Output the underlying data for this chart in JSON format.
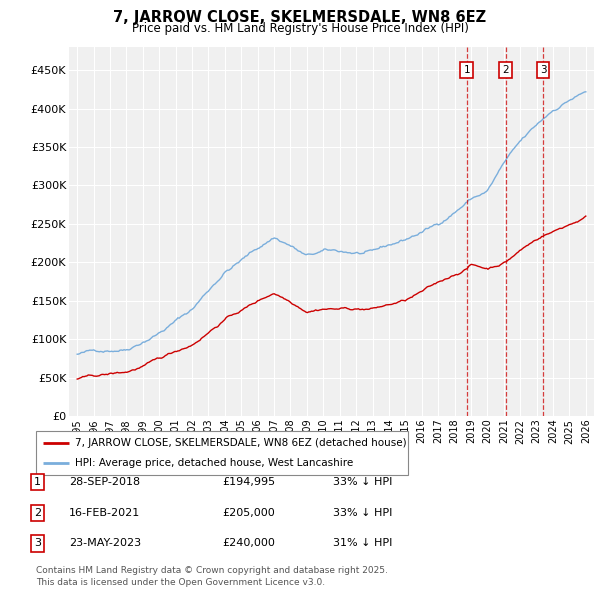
{
  "title": "7, JARROW CLOSE, SKELMERSDALE, WN8 6EZ",
  "subtitle": "Price paid vs. HM Land Registry's House Price Index (HPI)",
  "legend_label_red": "7, JARROW CLOSE, SKELMERSDALE, WN8 6EZ (detached house)",
  "legend_label_blue": "HPI: Average price, detached house, West Lancashire",
  "footnote": "Contains HM Land Registry data © Crown copyright and database right 2025.\nThis data is licensed under the Open Government Licence v3.0.",
  "sales": [
    {
      "num": 1,
      "date": "28-SEP-2018",
      "price": "£194,995",
      "pct": "33% ↓ HPI",
      "year": 2018.74
    },
    {
      "num": 2,
      "date": "16-FEB-2021",
      "price": "£205,000",
      "pct": "33% ↓ HPI",
      "year": 2021.12
    },
    {
      "num": 3,
      "date": "23-MAY-2023",
      "price": "£240,000",
      "pct": "31% ↓ HPI",
      "year": 2023.39
    }
  ],
  "ylim": [
    0,
    480000
  ],
  "xlim": [
    1994.5,
    2026.5
  ],
  "yticks": [
    0,
    50000,
    100000,
    150000,
    200000,
    250000,
    300000,
    350000,
    400000,
    450000
  ],
  "ytick_labels": [
    "£0",
    "£50K",
    "£100K",
    "£150K",
    "£200K",
    "£250K",
    "£300K",
    "£350K",
    "£400K",
    "£450K"
  ],
  "xticks": [
    1995,
    1996,
    1997,
    1998,
    1999,
    2000,
    2001,
    2002,
    2003,
    2004,
    2005,
    2006,
    2007,
    2008,
    2009,
    2010,
    2011,
    2012,
    2013,
    2014,
    2015,
    2016,
    2017,
    2018,
    2019,
    2020,
    2021,
    2022,
    2023,
    2024,
    2025,
    2026
  ],
  "bg_color": "#f0f0f0",
  "grid_color": "#ffffff",
  "red_color": "#cc0000",
  "blue_color": "#7aaedc",
  "hpi_base": [
    80000,
    90000,
    115000,
    145000,
    195000,
    240000,
    230000,
    215000,
    220000,
    215000,
    230000,
    250000,
    285000,
    295000,
    330000,
    355000,
    375000,
    395000,
    410000,
    420000
  ],
  "hpi_base_x": [
    1995,
    1998,
    2000,
    2002,
    2004,
    2007,
    2008,
    2009,
    2010,
    2013,
    2015,
    2017,
    2019,
    2020,
    2021,
    2022,
    2023,
    2024,
    2025,
    2026
  ],
  "red_base": [
    48000,
    55000,
    70000,
    90000,
    125000,
    160000,
    150000,
    140000,
    145000,
    145000,
    155000,
    175000,
    194995,
    200000,
    195000,
    205000,
    220000,
    240000,
    245000,
    255000,
    265000
  ],
  "red_base_x": [
    1995,
    1998,
    2000,
    2002,
    2004,
    2007,
    2008,
    2009,
    2010,
    2013,
    2015,
    2017,
    2018.74,
    2019,
    2020,
    2021.12,
    2022,
    2023.39,
    2024,
    2025,
    2026
  ]
}
